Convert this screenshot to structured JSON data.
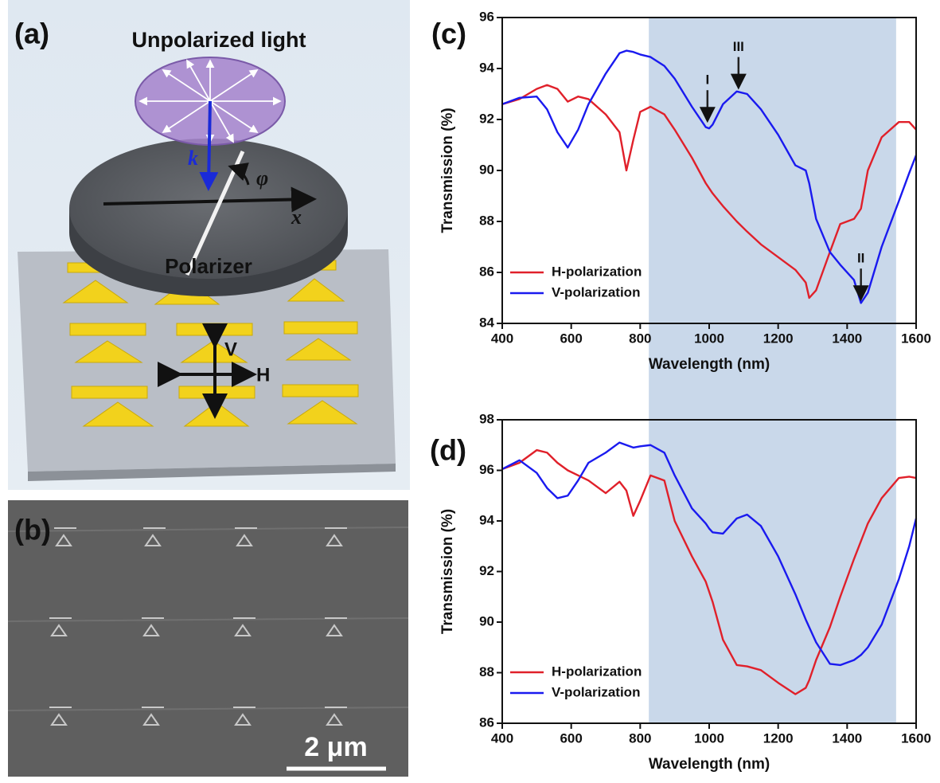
{
  "panels": {
    "a": {
      "label": "(a)",
      "light": "Unpolarized light",
      "k": "k",
      "phi": "φ",
      "x": "x",
      "polarizer": "Polarizer",
      "v": "V",
      "h": "H"
    },
    "b": {
      "label": "(b)",
      "scale_bar": "2 μm"
    },
    "c": {
      "label": "(c)"
    },
    "d": {
      "label": "(d)"
    }
  },
  "chart_data": [
    {
      "type": "line",
      "x_label": "Wavelength (nm)",
      "y_label": "Transmission (%)",
      "xlim": [
        400,
        1600
      ],
      "ylim": [
        84,
        96
      ],
      "xticks": [
        400,
        600,
        800,
        1000,
        1200,
        1400,
        1600
      ],
      "yticks": [
        84,
        86,
        88,
        90,
        92,
        94,
        96
      ],
      "shade": [
        825,
        1542
      ],
      "legend": "lower left",
      "x": [
        400,
        450,
        500,
        530,
        560,
        590,
        620,
        650,
        700,
        740,
        760,
        780,
        800,
        830,
        870,
        900,
        950,
        990,
        1000,
        1010,
        1040,
        1080,
        1110,
        1150,
        1200,
        1250,
        1280,
        1290,
        1310,
        1350,
        1380,
        1420,
        1440,
        1460,
        1500,
        1550,
        1580,
        1600
      ],
      "series": [
        {
          "name": "H-polarization",
          "color": "#e0202a",
          "values": [
            92.6,
            92.8,
            93.2,
            93.35,
            93.2,
            92.7,
            92.9,
            92.8,
            92.2,
            91.5,
            90.0,
            91.2,
            92.3,
            92.5,
            92.2,
            91.6,
            90.5,
            89.5,
            89.3,
            89.1,
            88.6,
            88.0,
            87.6,
            87.1,
            86.6,
            86.1,
            85.6,
            85.0,
            85.3,
            86.8,
            87.9,
            88.1,
            88.5,
            90.0,
            91.3,
            91.9,
            91.9,
            91.6
          ]
        },
        {
          "name": "V-polarization",
          "color": "#1a1aef",
          "values": [
            92.6,
            92.85,
            92.9,
            92.4,
            91.5,
            90.9,
            91.6,
            92.6,
            93.8,
            94.6,
            94.7,
            94.65,
            94.55,
            94.45,
            94.1,
            93.6,
            92.5,
            91.7,
            91.65,
            91.8,
            92.6,
            93.1,
            93.0,
            92.4,
            91.4,
            90.2,
            90.0,
            89.5,
            88.1,
            86.8,
            86.3,
            85.7,
            84.8,
            85.2,
            87.0,
            88.8,
            89.9,
            90.6
          ]
        }
      ],
      "annotations": [
        {
          "text": "I",
          "x": 995,
          "y": 91.9
        },
        {
          "text": "III",
          "x": 1085,
          "y": 93.2
        },
        {
          "text": "II",
          "x": 1440,
          "y": 84.9
        }
      ]
    },
    {
      "type": "line",
      "x_label": "Wavelength (nm)",
      "y_label": "Transmission (%)",
      "xlim": [
        400,
        1600
      ],
      "ylim": [
        86,
        98
      ],
      "xticks": [
        400,
        600,
        800,
        1000,
        1200,
        1400,
        1600
      ],
      "yticks": [
        86,
        88,
        90,
        92,
        94,
        96,
        98
      ],
      "shade": [
        825,
        1542
      ],
      "legend": "lower left",
      "x": [
        400,
        450,
        500,
        530,
        560,
        590,
        620,
        650,
        700,
        740,
        760,
        780,
        800,
        830,
        870,
        900,
        950,
        990,
        1000,
        1010,
        1040,
        1080,
        1110,
        1150,
        1200,
        1250,
        1280,
        1290,
        1310,
        1350,
        1380,
        1420,
        1440,
        1460,
        1500,
        1550,
        1580,
        1600
      ],
      "series": [
        {
          "name": "H-polarization",
          "color": "#e0202a",
          "values": [
            96.05,
            96.3,
            96.8,
            96.7,
            96.3,
            96.0,
            95.8,
            95.6,
            95.1,
            95.55,
            95.2,
            94.2,
            94.8,
            95.8,
            95.6,
            94.0,
            92.6,
            91.6,
            91.2,
            90.8,
            89.3,
            88.3,
            88.25,
            88.1,
            87.6,
            87.15,
            87.4,
            87.7,
            88.5,
            89.8,
            91.0,
            92.5,
            93.2,
            93.9,
            94.9,
            95.7,
            95.75,
            95.7
          ]
        },
        {
          "name": "V-polarization",
          "color": "#1a1aef",
          "values": [
            96.05,
            96.4,
            95.9,
            95.3,
            94.9,
            95.0,
            95.6,
            96.3,
            96.7,
            97.1,
            97.0,
            96.9,
            96.95,
            97.0,
            96.7,
            95.8,
            94.5,
            93.9,
            93.7,
            93.55,
            93.5,
            94.1,
            94.25,
            93.8,
            92.6,
            91.1,
            90.1,
            89.8,
            89.2,
            88.35,
            88.3,
            88.5,
            88.7,
            89.0,
            89.9,
            91.7,
            93.0,
            94.1
          ]
        }
      ]
    }
  ]
}
